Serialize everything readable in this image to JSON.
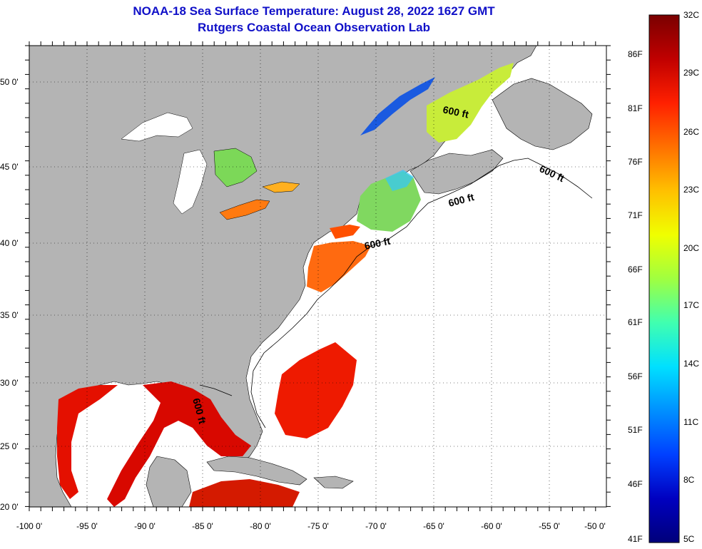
{
  "header": {
    "title": "NOAA-18 Sea Surface Temperature:  August 28, 2022 1627 GMT",
    "subtitle": "Rutgers Coastal Ocean Observation Lab"
  },
  "map": {
    "lon_range": [
      -100,
      -50
    ],
    "lat_range": [
      20,
      52
    ],
    "lat_labels": [
      "50 0'",
      "45 0'",
      "40 0'",
      "35 0'",
      "30 0'",
      "25 0'",
      "20 0'"
    ],
    "lon_labels": [
      "-100 0'",
      "-95 0'",
      "-90 0'",
      "-85 0'",
      "-80 0'",
      "-75 0'",
      "-70 0'",
      "-65 0'",
      "-60 0'",
      "-55 0'",
      "-50 0'"
    ],
    "contour_label": "600 ft",
    "land_color": "#b4b4b4",
    "nodata_color": "#ffffff"
  },
  "colorbar": {
    "celsius_labels": [
      "32C",
      "29C",
      "26C",
      "23C",
      "20C",
      "17C",
      "14C",
      "11C",
      "8C",
      "5C"
    ],
    "fahrenheit_labels": [
      "86F",
      "81F",
      "76F",
      "71F",
      "66F",
      "61F",
      "56F",
      "51F",
      "46F",
      "41F"
    ],
    "colors_top_to_bottom": [
      "#7a0000",
      "#c00000",
      "#ff2000",
      "#ff7000",
      "#ffc000",
      "#f0ff00",
      "#a0ff40",
      "#40ffb0",
      "#00e0ff",
      "#0090ff",
      "#0040ff",
      "#0000c0",
      "#00007a"
    ]
  }
}
